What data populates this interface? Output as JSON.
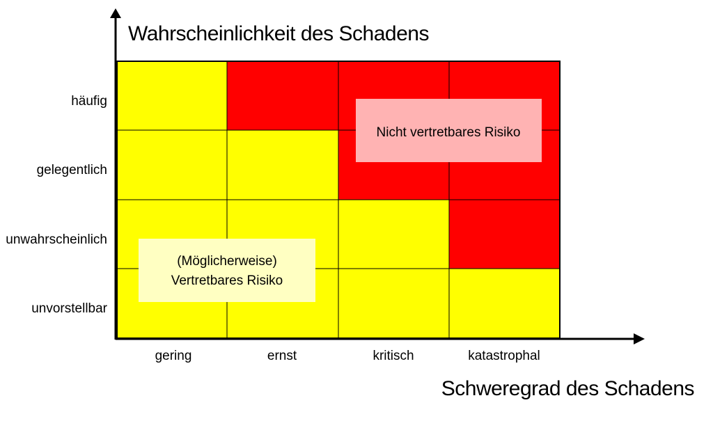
{
  "diagram": {
    "y_axis_title": "Wahrscheinlichkeit des Schadens",
    "x_axis_title": "Schweregrad des Schadens",
    "rows": [
      "häufig",
      "gelegentlich",
      "unwahrscheinlich",
      "unvorstellbar"
    ],
    "columns": [
      "gering",
      "ernst",
      "kritisch",
      "katastrophal"
    ],
    "cells": [
      [
        "yellow",
        "red",
        "red",
        "red"
      ],
      [
        "yellow",
        "yellow",
        "red",
        "red"
      ],
      [
        "yellow",
        "yellow",
        "yellow",
        "red"
      ],
      [
        "yellow",
        "yellow",
        "yellow",
        "yellow"
      ]
    ],
    "colors": {
      "yellow": "#ffff00",
      "red": "#ff0000",
      "unacceptable_box": "#ffb3b3",
      "acceptable_box": "#ffffc2"
    },
    "unacceptable_label": "Nicht vertretbares Risiko",
    "acceptable_label_line1": "(Möglicherweise)",
    "acceptable_label_line2": "Vertretbares Risiko"
  }
}
